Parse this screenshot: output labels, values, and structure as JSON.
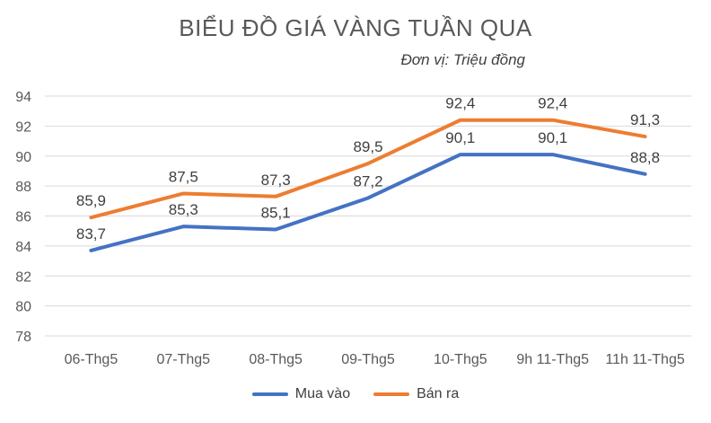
{
  "chart_data": {
    "type": "line",
    "title": "BIỂU ĐỒ GIÁ VÀNG TUẦN QUA",
    "subtitle": "Đơn vị: Triệu đồng",
    "categories": [
      "06-Thg5",
      "07-Thg5",
      "08-Thg5",
      "09-Thg5",
      "10-Thg5",
      "9h 11-Thg5",
      "11h 11-Thg5"
    ],
    "ylim": [
      78,
      94
    ],
    "yticks": [
      "78",
      "80",
      "82",
      "84",
      "86",
      "88",
      "90",
      "92",
      "94"
    ],
    "ytick_values": [
      78,
      80,
      82,
      84,
      86,
      88,
      90,
      92,
      94
    ],
    "grid": true,
    "legend_position": "bottom",
    "series": [
      {
        "name": "Mua vào",
        "color": "#4472C4",
        "values": [
          83.7,
          85.3,
          85.1,
          87.2,
          90.1,
          90.1,
          88.8
        ],
        "labels": [
          "83,7",
          "85,3",
          "85,1",
          "87,2",
          "90,1",
          "90,1",
          "88,8"
        ]
      },
      {
        "name": "Bán ra",
        "color": "#ED7D31",
        "values": [
          85.9,
          87.5,
          87.3,
          89.5,
          92.4,
          92.4,
          91.3
        ],
        "labels": [
          "85,9",
          "87,5",
          "87,3",
          "89,5",
          "92,4",
          "92,4",
          "91,3"
        ]
      }
    ]
  }
}
